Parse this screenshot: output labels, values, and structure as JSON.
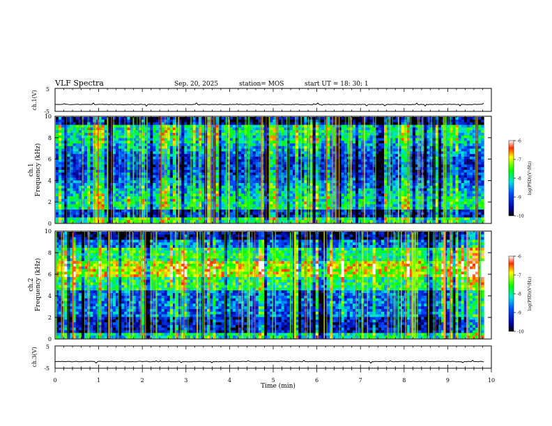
{
  "header": {
    "title": "VLF Spectra",
    "date": "Sep. 20, 2025",
    "station": "station= MOS",
    "start": "start  UT =   18: 30: 1"
  },
  "chart_data": [
    {
      "type": "line",
      "name": "ch1-waveform",
      "ylabel": "ch.1(V)",
      "ylim": [
        -5,
        5
      ],
      "yticks": [
        "5",
        "-5"
      ],
      "baseline": -2.0
    },
    {
      "type": "heatmap",
      "name": "ch1-spectrogram",
      "ylabel_channel": "ch.1",
      "ylabel": "Frequency (kHz)",
      "ylim": [
        0,
        10
      ],
      "yticks": [
        "0",
        "2",
        "4",
        "6",
        "8",
        "10"
      ],
      "colorbar": {
        "label": "log(PSD)(V²/Hz)",
        "range": [
          -10,
          -6
        ],
        "ticks": [
          "-6",
          "-7",
          "-8",
          "-9",
          "-10"
        ]
      }
    },
    {
      "type": "heatmap",
      "name": "ch2-spectrogram",
      "ylabel_channel": "ch.2",
      "ylabel": "Frequency (kHz)",
      "ylim": [
        0,
        10
      ],
      "yticks": [
        "0",
        "2",
        "4",
        "6",
        "8",
        "10"
      ],
      "colorbar": {
        "label": "log(PSD)(V²/Hz)",
        "range": [
          -10,
          -6
        ],
        "ticks": [
          "-6",
          "-7",
          "-8",
          "-9",
          "-10"
        ]
      }
    },
    {
      "type": "line",
      "name": "ch3-waveform",
      "ylabel": "ch.3(V)",
      "ylim": [
        -5,
        5
      ],
      "yticks": [
        "5",
        "-5"
      ],
      "baseline": -2.0
    }
  ],
  "xaxis": {
    "label": "Time  (min)",
    "ticks": [
      "0",
      "1",
      "2",
      "3",
      "4",
      "5",
      "6",
      "7",
      "8",
      "9",
      "10"
    ],
    "xlim": [
      0,
      10
    ],
    "data_end": 9.83
  },
  "colors": {
    "axis": "#000000",
    "background": "#ffffff"
  }
}
